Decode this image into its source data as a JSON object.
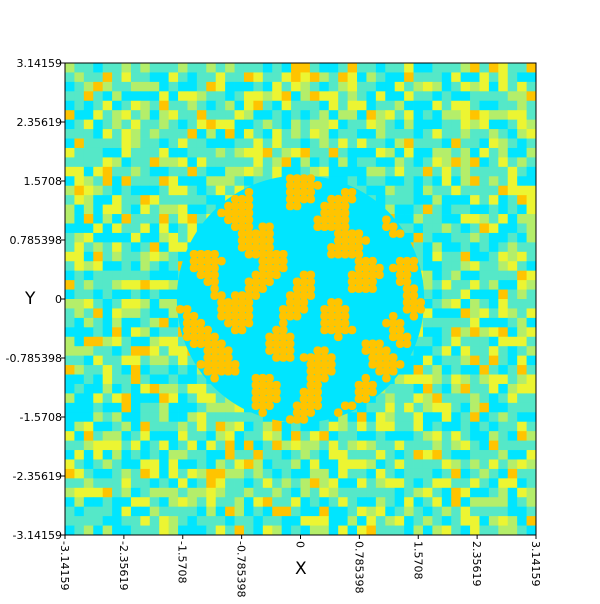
{
  "chart_data": {
    "type": "heatmap",
    "title": "",
    "xlabel": "X",
    "ylabel": "Y",
    "xlim": [
      -3.14159,
      3.14159
    ],
    "ylim": [
      -3.14159,
      3.14159
    ],
    "x_ticks": [
      {
        "value": -3.14159,
        "label": "-3.14159"
      },
      {
        "value": -2.35619,
        "label": "-2.35619"
      },
      {
        "value": -1.5708,
        "label": "-1.5708"
      },
      {
        "value": -0.785398,
        "label": "-0.785398"
      },
      {
        "value": 0,
        "label": "0"
      },
      {
        "value": 0.785398,
        "label": "0.785398"
      },
      {
        "value": 1.5708,
        "label": "1.5708"
      },
      {
        "value": 2.35619,
        "label": "2.35619"
      },
      {
        "value": 3.14159,
        "label": "3.14159"
      }
    ],
    "y_ticks": [
      {
        "value": 3.14159,
        "label": "3.14159"
      },
      {
        "value": 2.35619,
        "label": "2.35619"
      },
      {
        "value": 1.5708,
        "label": "1.5708"
      },
      {
        "value": 0.785398,
        "label": "0.785398"
      },
      {
        "value": 0,
        "label": "0"
      },
      {
        "value": -0.785398,
        "label": "-0.785398"
      },
      {
        "value": -1.5708,
        "label": "-1.5708"
      },
      {
        "value": -2.35619,
        "label": "-2.35619"
      },
      {
        "value": -3.14159,
        "label": "-3.14159"
      }
    ],
    "colormap": [
      "#00e5ff",
      "#55e8c8",
      "#b4ee6a",
      "#ecf532",
      "#ffc400"
    ],
    "field": {
      "background": "random noise grid",
      "center": [
        0,
        0
      ],
      "pattern": "labyrinthine stripes",
      "pattern_radius": 1.65
    },
    "grid": false,
    "legend": "none"
  }
}
